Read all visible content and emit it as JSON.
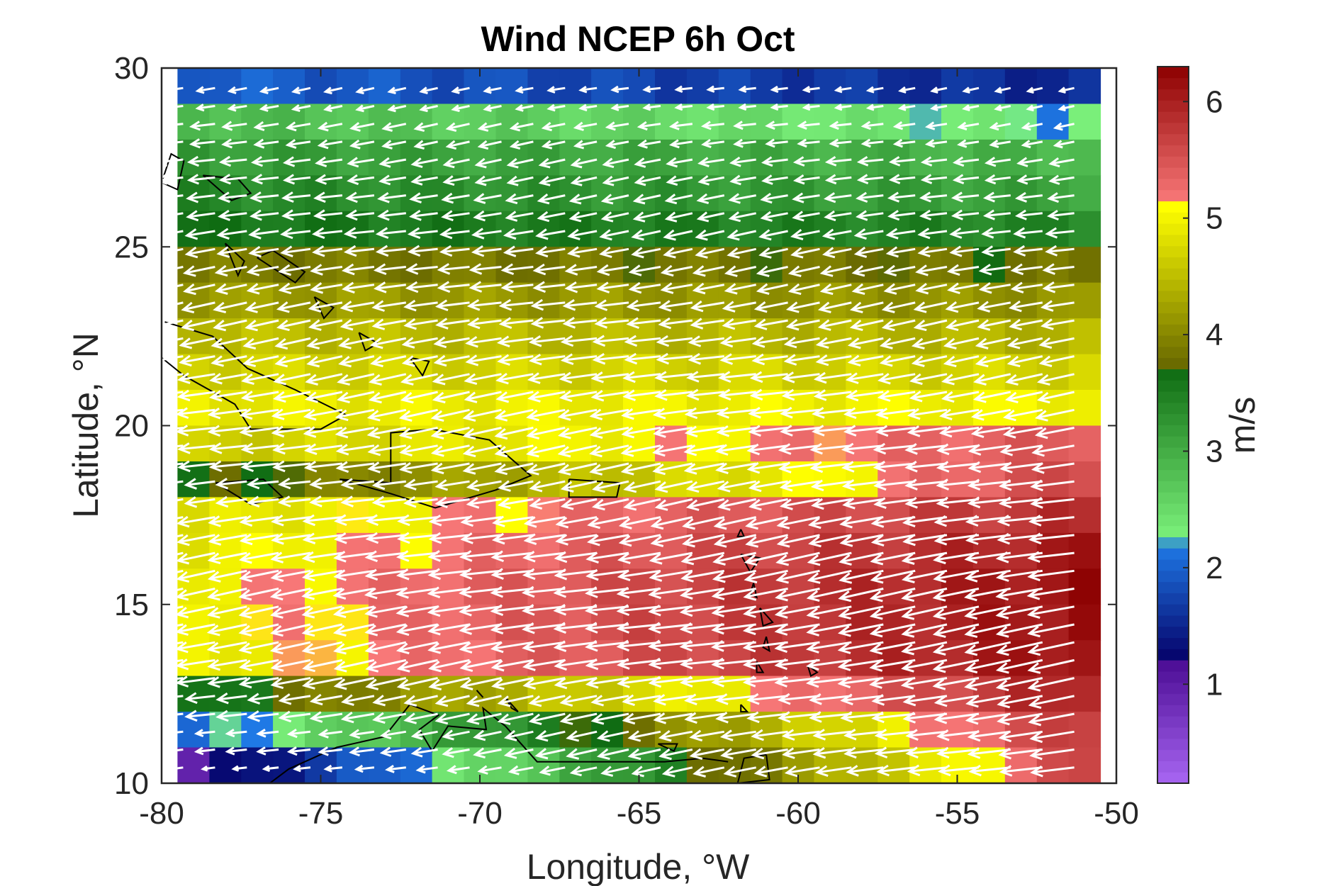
{
  "chart_data": {
    "type": "heatmap",
    "title": "Wind NCEP 6h Oct",
    "xlabel": "Longitude, °W",
    "ylabel": "Latitude, °N",
    "xlim": [
      -80,
      -50
    ],
    "ylim": [
      10,
      30
    ],
    "xticks": [
      -80,
      -75,
      -70,
      -65,
      -60,
      -55,
      -50
    ],
    "yticks": [
      10,
      15,
      20,
      25,
      30
    ],
    "colorbar": {
      "label": "m/s",
      "range": [
        0.15,
        6.3
      ],
      "ticks": [
        1,
        2,
        3,
        4,
        5,
        6
      ],
      "colormap": [
        {
          "value": 0.15,
          "color": "#a866f2"
        },
        {
          "value": 1.2,
          "color": "#4b0c94"
        },
        {
          "value": 1.25,
          "color": "#06066e"
        },
        {
          "value": 2.2,
          "color": "#1f7ae6"
        },
        {
          "value": 2.25,
          "color": "#7cf27c"
        },
        {
          "value": 3.7,
          "color": "#0f6b12"
        },
        {
          "value": 3.75,
          "color": "#6b6b00"
        },
        {
          "value": 5.1,
          "color": "#ffff00"
        },
        {
          "value": 5.15,
          "color": "#f87878"
        },
        {
          "value": 6.3,
          "color": "#8c0000"
        }
      ]
    },
    "grid_spacing_deg": 1,
    "speed_field_by_latitude_band": [
      {
        "lat": [
          29,
          30
        ],
        "west": 2.0,
        "east": 1.5
      },
      {
        "lat": [
          28,
          29
        ],
        "west": 2.9,
        "east": 2.2
      },
      {
        "lat": [
          27,
          28
        ],
        "west": 3.2,
        "east": 2.9
      },
      {
        "lat": [
          26,
          27
        ],
        "west": 3.4,
        "east": 3.1
      },
      {
        "lat": [
          25,
          26
        ],
        "west": 3.6,
        "east": 3.4
      },
      {
        "lat": [
          24,
          25
        ],
        "west": 3.9,
        "east": 3.8
      },
      {
        "lat": [
          23,
          24
        ],
        "west": 4.2,
        "east": 4.1
      },
      {
        "lat": [
          22,
          23
        ],
        "west": 4.5,
        "east": 4.4
      },
      {
        "lat": [
          21,
          22
        ],
        "west": 4.7,
        "east": 4.7
      },
      {
        "lat": [
          20,
          21
        ],
        "west": 4.9,
        "east": 5.0
      },
      {
        "lat": [
          19,
          20
        ],
        "west": 4.6,
        "east": 5.5
      },
      {
        "lat": [
          18,
          19
        ],
        "west": 3.6,
        "east": 5.7
      },
      {
        "lat": [
          17,
          18
        ],
        "west": 4.8,
        "east": 5.9
      },
      {
        "lat": [
          16,
          17
        ],
        "west": 4.9,
        "east": 6.1
      },
      {
        "lat": [
          15,
          16
        ],
        "west": 5.0,
        "east": 6.2
      },
      {
        "lat": [
          14,
          15
        ],
        "west": 5.0,
        "east": 6.2
      },
      {
        "lat": [
          13,
          14
        ],
        "west": 4.9,
        "east": 6.2
      },
      {
        "lat": [
          12,
          13
        ],
        "west": 3.5,
        "east": 6.1
      },
      {
        "lat": [
          11,
          12
        ],
        "west": 2.0,
        "east": 5.9
      },
      {
        "lat": [
          10,
          11
        ],
        "west": 1.0,
        "east": 5.8
      }
    ],
    "wind_direction": "mostly from the east (easterly trade winds)",
    "vectors": "white arrows on 0.5° grid",
    "coastlines": "Caribbean islands, Florida, Bahamas, Cuba, Hispaniola, Puerto Rico, Lesser Antilles, northern South America"
  }
}
